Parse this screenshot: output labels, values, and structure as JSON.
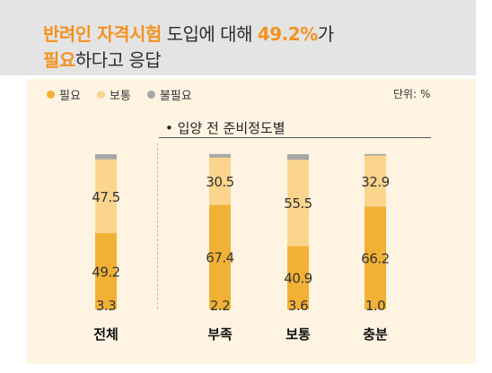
{
  "title": {
    "line1_highlight1": "반려인 자격시험",
    "line1_text1": " 도입에 대해 ",
    "line1_highlight2": "49.2%",
    "line1_text2": "가",
    "line2_highlight": "필요",
    "line2_text": "하다고 응답"
  },
  "legend": [
    {
      "label": "필요",
      "color": "#f2b134"
    },
    {
      "label": "보통",
      "color": "#fcd58d"
    },
    {
      "label": "불필요",
      "color": "#a6a6a6"
    }
  ],
  "unit": "단위: %",
  "group_title": "• 입양 전 준비정도별",
  "chart_data": {
    "type": "bar",
    "stacked": true,
    "orientation": "vertical",
    "categories": [
      "전체",
      "부족",
      "보통",
      "충분"
    ],
    "series": [
      {
        "name": "필요",
        "values": [
          49.2,
          67.4,
          40.9,
          66.2
        ],
        "color": "#f2b134"
      },
      {
        "name": "보통",
        "values": [
          47.5,
          30.5,
          55.5,
          32.9
        ],
        "color": "#fcd58d"
      },
      {
        "name": "불필요",
        "values": [
          3.3,
          2.2,
          3.6,
          1.0
        ],
        "color": "#a6a6a6"
      }
    ],
    "value_labels": [
      [
        "49.2",
        "47.5",
        "3.3"
      ],
      [
        "67.4",
        "30.5",
        "2.2"
      ],
      [
        "40.9",
        "55.5",
        "3.6"
      ],
      [
        "66.2",
        "32.9",
        "1.0"
      ]
    ],
    "ylim": [
      0,
      100
    ]
  }
}
